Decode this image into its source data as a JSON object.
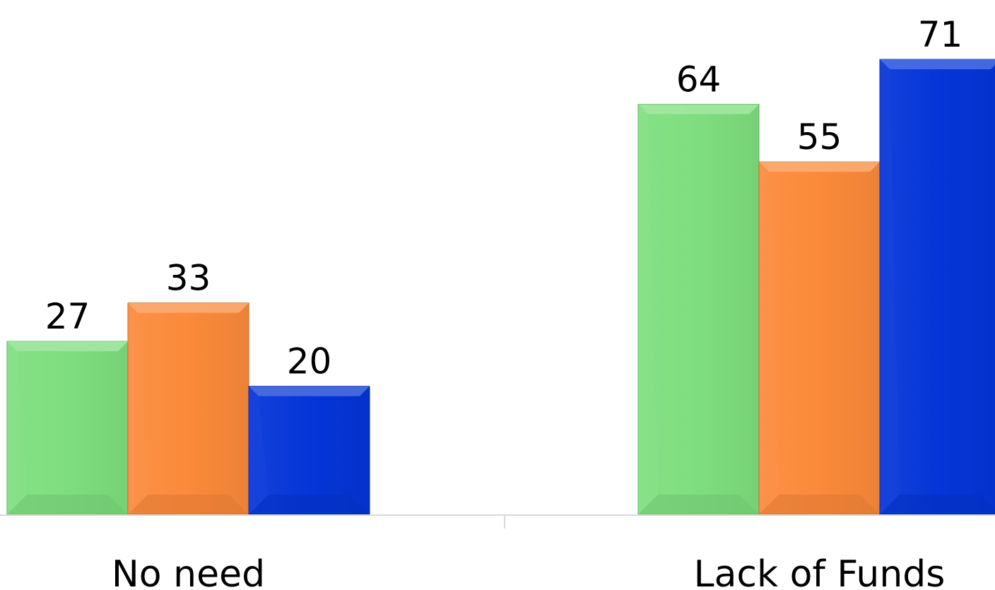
{
  "chart_data": {
    "type": "bar",
    "title": "",
    "xlabel": "",
    "ylabel": "",
    "categories": [
      "No need",
      "Lack of Funds"
    ],
    "series": [
      {
        "values": [
          27,
          64
        ],
        "color": "#7ede7e"
      },
      {
        "values": [
          33,
          55
        ],
        "color": "#fb8a3a"
      },
      {
        "values": [
          20,
          71
        ],
        "color": "#0535d8"
      }
    ],
    "ylim": [
      0,
      80
    ],
    "grid": false,
    "legend": "none",
    "data_labels": true
  }
}
